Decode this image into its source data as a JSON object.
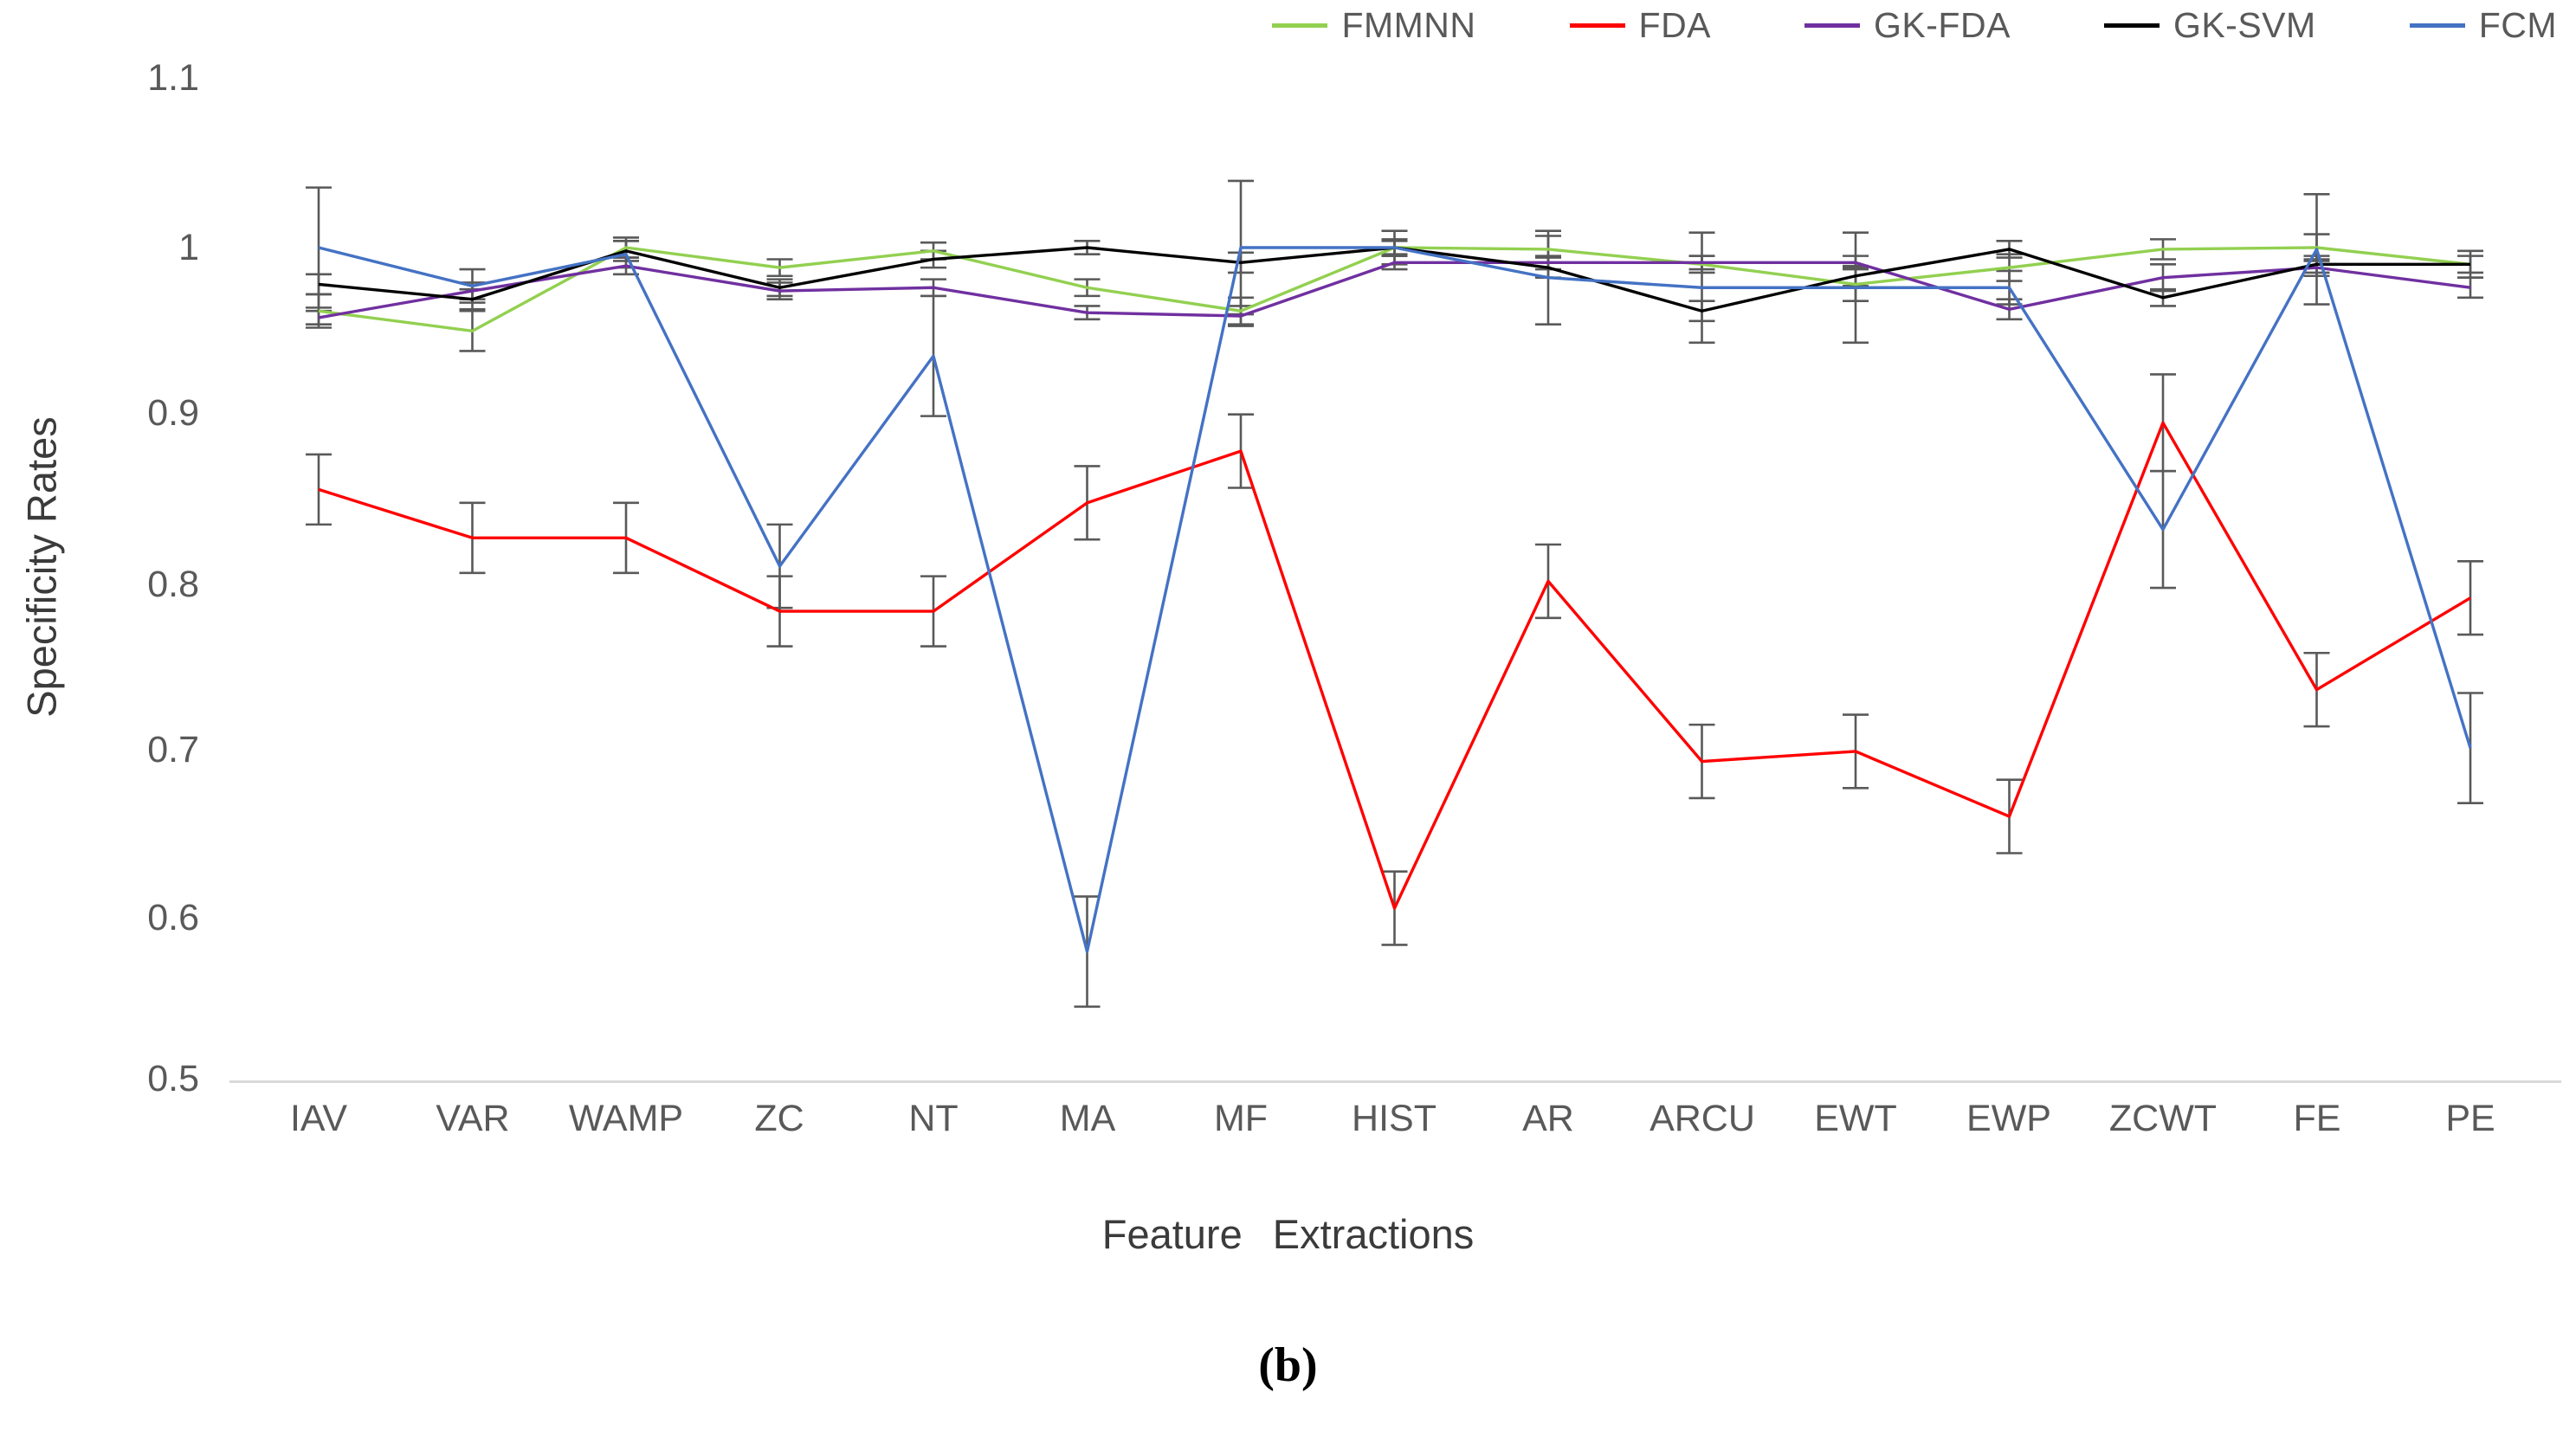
{
  "chart_data": {
    "type": "line",
    "title": "",
    "ylabel": "Specificity Rates",
    "xlabel": "Feature Extractions",
    "caption": "(b)",
    "ylim": [
      0.5,
      1.1
    ],
    "grid": false,
    "legend_position": "top-right",
    "y_ticks": [
      1.1,
      1.0,
      0.9,
      0.8,
      0.7,
      0.6,
      0.5
    ],
    "y_tick_labels": [
      "1.1",
      "1",
      "0.9",
      "0.8",
      "0.7",
      "0.6",
      "0.5"
    ],
    "categories": [
      "IAV",
      "VAR",
      "WAMP",
      "ZC",
      "NT",
      "MA",
      "MF",
      "HIST",
      "AR",
      "ARCU",
      "EWT",
      "EWP",
      "ZCWT",
      "FE",
      "PE"
    ],
    "axis_line_color": "#d9d9d9",
    "error_bar_color": "#595959",
    "text_color": "#595959",
    "series": [
      {
        "name": "FMMNN",
        "color": "#92d050",
        "values": [
          0.962,
          0.95,
          1.0,
          0.988,
          0.998,
          0.976,
          0.962,
          1.0,
          0.999,
          0.99,
          0.978,
          0.988,
          0.999,
          1.0,
          0.99
        ],
        "errors": [
          0.01,
          0.012,
          0.006,
          0.005,
          0.005,
          0.005,
          0.008,
          0.005,
          0.008,
          0.005,
          0.01,
          0.008,
          0.006,
          0.008,
          0.008
        ]
      },
      {
        "name": "FDA",
        "color": "#ff0000",
        "values": [
          0.855,
          0.826,
          0.826,
          0.782,
          0.782,
          0.847,
          0.878,
          0.604,
          0.8,
          0.692,
          0.698,
          0.659,
          0.895,
          0.735,
          0.79
        ],
        "errors": [
          0.021,
          0.021,
          0.021,
          0.021,
          0.021,
          0.022,
          0.022,
          0.022,
          0.022,
          0.022,
          0.022,
          0.022,
          0.029,
          0.022,
          0.022
        ]
      },
      {
        "name": "GK-FDA",
        "color": "#7030a0",
        "values": [
          0.958,
          0.974,
          0.989,
          0.974,
          0.976,
          0.961,
          0.959,
          0.991,
          0.991,
          0.991,
          0.991,
          0.963,
          0.982,
          0.988,
          0.976
        ],
        "errors": [
          0.004,
          0.005,
          0.005,
          0.005,
          0.005,
          0.004,
          0.006,
          0.004,
          0.004,
          0.004,
          0.004,
          0.006,
          0.008,
          0.005,
          0.006
        ]
      },
      {
        "name": "GK-SVM",
        "color": "#000000",
        "values": [
          0.978,
          0.969,
          0.998,
          0.976,
          0.993,
          1.0,
          0.991,
          1.0,
          0.988,
          0.962,
          0.983,
          0.999,
          0.97,
          0.99,
          0.99
        ],
        "errors": [
          0.006,
          0.006,
          0.006,
          0.005,
          0.005,
          0.004,
          0.006,
          0.004,
          0.006,
          0.006,
          0.006,
          0.005,
          0.005,
          0.005,
          0.005
        ]
      },
      {
        "name": "FCM",
        "color": "#4472c4",
        "values": [
          1.0,
          0.977,
          0.996,
          0.809,
          0.935,
          0.578,
          1.0,
          1.0,
          0.982,
          0.976,
          0.976,
          0.976,
          0.831,
          0.999,
          0.7
        ],
        "errors": [
          0.036,
          0.01,
          0.008,
          0.025,
          0.036,
          0.033,
          0.04,
          0.01,
          0.028,
          0.033,
          0.033,
          0.01,
          0.035,
          0.033,
          0.033
        ]
      }
    ]
  }
}
